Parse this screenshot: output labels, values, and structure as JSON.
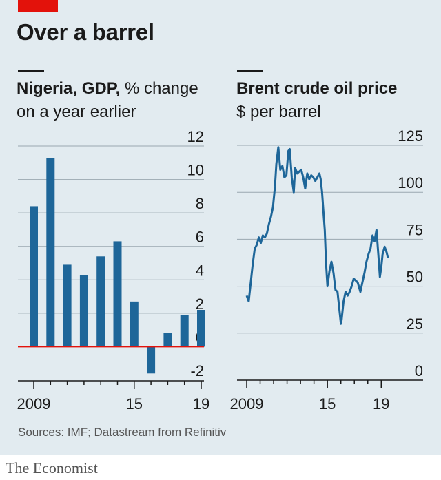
{
  "title": "Over a barrel",
  "source": "Sources: IMF; Datastream from Refinitiv",
  "brand": "The Economist",
  "colors": {
    "background": "#e2ebf0",
    "series": "#1e6699",
    "zero_line": "#e3120b",
    "grid": "#9aa7b0",
    "accent": "#e3120b"
  },
  "chart_data": [
    {
      "type": "bar",
      "title": "Nigeria, GDP,",
      "subtitle_inline": "% change",
      "subtitle": "on a year earlier",
      "x": [
        2009,
        2010,
        2011,
        2012,
        2013,
        2014,
        2015,
        2016,
        2017,
        2018,
        2019
      ],
      "values": [
        8.4,
        11.3,
        4.9,
        4.3,
        5.4,
        6.3,
        2.7,
        -1.6,
        0.8,
        1.9,
        2.2
      ],
      "ylim": [
        -2,
        12
      ],
      "yticks": [
        "12",
        "10",
        "8",
        "6",
        "4",
        "2",
        "0",
        "-2"
      ],
      "ytick_values": [
        12,
        10,
        8,
        6,
        4,
        2,
        0,
        -2
      ],
      "xtick_labels": [
        {
          "x": 2009,
          "label": "2009"
        },
        {
          "x": 2015,
          "label": "15"
        },
        {
          "x": 2019,
          "label": "19"
        }
      ],
      "grid": true
    },
    {
      "type": "line",
      "title": "Brent crude oil price",
      "subtitle": "$ per barrel",
      "x_range": [
        2009,
        2019.6
      ],
      "ylim": [
        0,
        125
      ],
      "yticks": [
        "125",
        "100",
        "75",
        "50",
        "25",
        "0"
      ],
      "ytick_values": [
        125,
        100,
        75,
        50,
        25,
        0
      ],
      "xtick_labels": [
        {
          "x": 2009,
          "label": "2009"
        },
        {
          "x": 2015,
          "label": "15"
        },
        {
          "x": 2019,
          "label": "19"
        }
      ],
      "grid": true,
      "x": [
        2009.0,
        2009.15,
        2009.3,
        2009.45,
        2009.6,
        2009.75,
        2009.9,
        2010.05,
        2010.2,
        2010.35,
        2010.5,
        2010.65,
        2010.8,
        2010.95,
        2011.1,
        2011.2,
        2011.35,
        2011.5,
        2011.65,
        2011.8,
        2011.95,
        2012.1,
        2012.2,
        2012.35,
        2012.5,
        2012.6,
        2012.75,
        2012.9,
        2013.05,
        2013.2,
        2013.35,
        2013.5,
        2013.65,
        2013.8,
        2013.95,
        2014.1,
        2014.25,
        2014.4,
        2014.5,
        2014.6,
        2014.7,
        2014.8,
        2014.9,
        2015.0,
        2015.15,
        2015.3,
        2015.45,
        2015.6,
        2015.75,
        2015.9,
        2016.0,
        2016.05,
        2016.2,
        2016.35,
        2016.5,
        2016.65,
        2016.8,
        2016.95,
        2017.1,
        2017.25,
        2017.45,
        2017.6,
        2017.75,
        2017.9,
        2018.05,
        2018.2,
        2018.35,
        2018.5,
        2018.65,
        2018.8,
        2018.9,
        2019.0,
        2019.1,
        2019.25,
        2019.4,
        2019.5
      ],
      "values": [
        45,
        42,
        52,
        62,
        70,
        72,
        76,
        73,
        77,
        76,
        78,
        83,
        87,
        92,
        103,
        115,
        124,
        112,
        114,
        108,
        109,
        122,
        123,
        108,
        100,
        113,
        110,
        111,
        112,
        108,
        102,
        110,
        107,
        109,
        108,
        106,
        108,
        110,
        107,
        100,
        90,
        80,
        62,
        50,
        58,
        63,
        57,
        48,
        47,
        37,
        30,
        32,
        42,
        47,
        45,
        47,
        50,
        54,
        53,
        52,
        47,
        52,
        57,
        63,
        67,
        70,
        77,
        74,
        80,
        65,
        55,
        60,
        67,
        71,
        68,
        65
      ]
    }
  ]
}
